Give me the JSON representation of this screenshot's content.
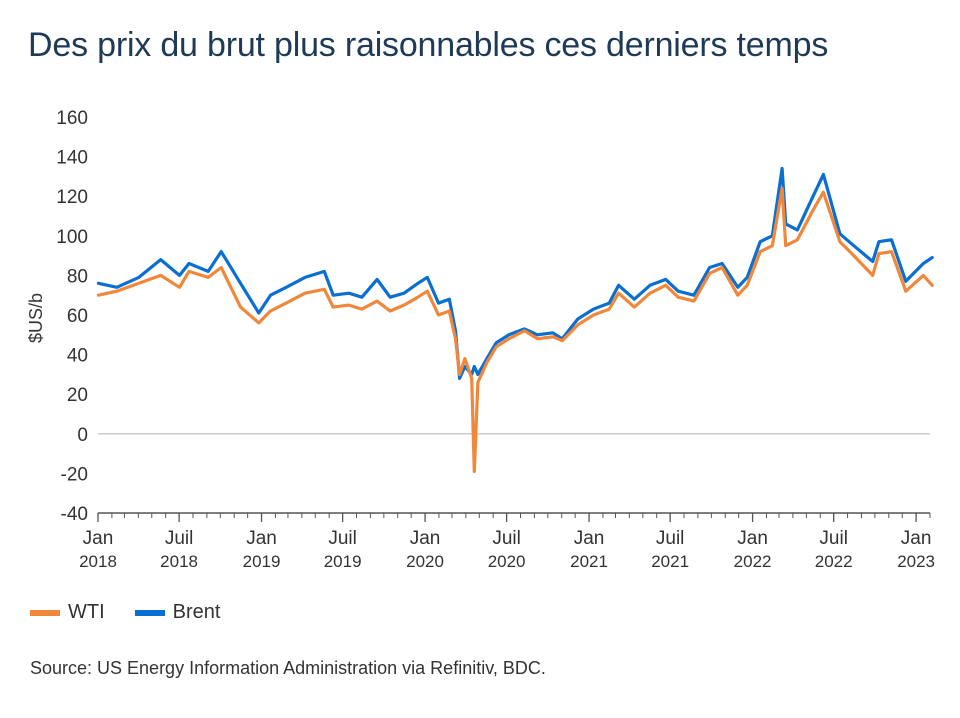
{
  "title": "Des prix du brut plus raisonnables ces derniers temps",
  "source": "Source: US Energy Information Administration via Refinitiv, BDC.",
  "colors": {
    "WTI": "#f0873a",
    "Brent": "#0a6fd1",
    "axis": "#555555",
    "zero_line": "#bbbbbb",
    "title": "#1f3a56"
  },
  "chart_data": {
    "type": "line",
    "ylabel": "$US/b",
    "ylim": [
      -40,
      160
    ],
    "yticks": [
      -40,
      -20,
      0,
      20,
      40,
      60,
      80,
      100,
      120,
      140,
      160
    ],
    "xlim": [
      "2018-01",
      "2023-02"
    ],
    "xticks": [
      {
        "x": "2018-01",
        "label1": "Jan",
        "label2": "2018"
      },
      {
        "x": "2018-07",
        "label1": "Juil",
        "label2": "2018"
      },
      {
        "x": "2019-01",
        "label1": "Jan",
        "label2": "2019"
      },
      {
        "x": "2019-07",
        "label1": "Juil",
        "label2": "2019"
      },
      {
        "x": "2020-01",
        "label1": "Jan",
        "label2": "2020"
      },
      {
        "x": "2020-07",
        "label1": "Juil",
        "label2": "2020"
      },
      {
        "x": "2021-01",
        "label1": "Jan",
        "label2": "2021"
      },
      {
        "x": "2021-07",
        "label1": "Juil",
        "label2": "2021"
      },
      {
        "x": "2022-01",
        "label1": "Jan",
        "label2": "2022"
      },
      {
        "x": "2022-07",
        "label1": "Juil",
        "label2": "2022"
      },
      {
        "x": "2023-01",
        "label1": "Jan",
        "label2": "2023"
      }
    ],
    "legend_position": "bottom-left",
    "series": [
      {
        "name": "WTI",
        "points": [
          [
            "2018-01-02",
            70
          ],
          [
            "2018-02-12",
            72
          ],
          [
            "2018-04-02",
            76
          ],
          [
            "2018-05-21",
            80
          ],
          [
            "2018-07-02",
            74
          ],
          [
            "2018-07-23",
            82
          ],
          [
            "2018-09-04",
            79
          ],
          [
            "2018-10-03",
            84
          ],
          [
            "2018-11-15",
            64
          ],
          [
            "2018-12-26",
            56
          ],
          [
            "2019-01-21",
            62
          ],
          [
            "2019-02-25",
            66
          ],
          [
            "2019-04-08",
            71
          ],
          [
            "2019-05-21",
            73
          ],
          [
            "2019-06-10",
            64
          ],
          [
            "2019-07-15",
            65
          ],
          [
            "2019-08-13",
            63
          ],
          [
            "2019-09-16",
            67
          ],
          [
            "2019-10-15",
            62
          ],
          [
            "2019-11-15",
            65
          ],
          [
            "2019-12-16",
            69
          ],
          [
            "2020-01-06",
            72
          ],
          [
            "2020-01-31",
            60
          ],
          [
            "2020-02-24",
            62
          ],
          [
            "2020-03-09",
            48
          ],
          [
            "2020-03-18",
            30
          ],
          [
            "2020-03-30",
            38
          ],
          [
            "2020-04-14",
            28
          ],
          [
            "2020-04-20",
            -19
          ],
          [
            "2020-04-28",
            26
          ],
          [
            "2020-05-18",
            36
          ],
          [
            "2020-06-08",
            44
          ],
          [
            "2020-07-06",
            48
          ],
          [
            "2020-08-10",
            52
          ],
          [
            "2020-09-08",
            48
          ],
          [
            "2020-10-12",
            49
          ],
          [
            "2020-11-02",
            47
          ],
          [
            "2020-12-07",
            55
          ],
          [
            "2021-01-11",
            60
          ],
          [
            "2021-02-15",
            63
          ],
          [
            "2021-03-08",
            71
          ],
          [
            "2021-04-12",
            64
          ],
          [
            "2021-05-17",
            71
          ],
          [
            "2021-06-21",
            75
          ],
          [
            "2021-07-19",
            69
          ],
          [
            "2021-08-23",
            67
          ],
          [
            "2021-09-27",
            81
          ],
          [
            "2021-10-25",
            84
          ],
          [
            "2021-11-29",
            70
          ],
          [
            "2021-12-20",
            75
          ],
          [
            "2022-01-18",
            92
          ],
          [
            "2022-02-14",
            95
          ],
          [
            "2022-03-08",
            124
          ],
          [
            "2022-03-16",
            95
          ],
          [
            "2022-04-11",
            98
          ],
          [
            "2022-05-16",
            113
          ],
          [
            "2022-06-08",
            122
          ],
          [
            "2022-07-15",
            97
          ],
          [
            "2022-08-15",
            90
          ],
          [
            "2022-09-26",
            80
          ],
          [
            "2022-10-10",
            91
          ],
          [
            "2022-11-07",
            92
          ],
          [
            "2022-12-09",
            72
          ],
          [
            "2023-01-17",
            80
          ],
          [
            "2023-02-06",
            75
          ]
        ]
      },
      {
        "name": "Brent",
        "points": [
          [
            "2018-01-02",
            76
          ],
          [
            "2018-02-12",
            74
          ],
          [
            "2018-04-02",
            79
          ],
          [
            "2018-05-21",
            88
          ],
          [
            "2018-07-02",
            80
          ],
          [
            "2018-07-23",
            86
          ],
          [
            "2018-09-04",
            82
          ],
          [
            "2018-10-03",
            92
          ],
          [
            "2018-11-15",
            76
          ],
          [
            "2018-12-26",
            61
          ],
          [
            "2019-01-21",
            70
          ],
          [
            "2019-02-25",
            74
          ],
          [
            "2019-04-08",
            79
          ],
          [
            "2019-05-21",
            82
          ],
          [
            "2019-06-10",
            70
          ],
          [
            "2019-07-15",
            71
          ],
          [
            "2019-08-13",
            69
          ],
          [
            "2019-09-16",
            78
          ],
          [
            "2019-10-15",
            69
          ],
          [
            "2019-11-15",
            71
          ],
          [
            "2019-12-16",
            76
          ],
          [
            "2020-01-06",
            79
          ],
          [
            "2020-01-31",
            66
          ],
          [
            "2020-02-24",
            68
          ],
          [
            "2020-03-09",
            52
          ],
          [
            "2020-03-18",
            28
          ],
          [
            "2020-03-30",
            34
          ],
          [
            "2020-04-14",
            30
          ],
          [
            "2020-04-20",
            34
          ],
          [
            "2020-04-28",
            30
          ],
          [
            "2020-05-18",
            38
          ],
          [
            "2020-06-08",
            46
          ],
          [
            "2020-07-06",
            50
          ],
          [
            "2020-08-10",
            53
          ],
          [
            "2020-09-08",
            50
          ],
          [
            "2020-10-12",
            51
          ],
          [
            "2020-11-02",
            48
          ],
          [
            "2020-12-07",
            58
          ],
          [
            "2021-01-11",
            63
          ],
          [
            "2021-02-15",
            66
          ],
          [
            "2021-03-08",
            75
          ],
          [
            "2021-04-12",
            68
          ],
          [
            "2021-05-17",
            75
          ],
          [
            "2021-06-21",
            78
          ],
          [
            "2021-07-19",
            72
          ],
          [
            "2021-08-23",
            70
          ],
          [
            "2021-09-27",
            84
          ],
          [
            "2021-10-25",
            86
          ],
          [
            "2021-11-29",
            74
          ],
          [
            "2021-12-20",
            79
          ],
          [
            "2022-01-18",
            97
          ],
          [
            "2022-02-14",
            100
          ],
          [
            "2022-03-08",
            134
          ],
          [
            "2022-03-16",
            106
          ],
          [
            "2022-04-11",
            103
          ],
          [
            "2022-05-16",
            120
          ],
          [
            "2022-06-08",
            131
          ],
          [
            "2022-07-15",
            101
          ],
          [
            "2022-08-15",
            95
          ],
          [
            "2022-09-26",
            87
          ],
          [
            "2022-10-10",
            97
          ],
          [
            "2022-11-07",
            98
          ],
          [
            "2022-12-09",
            77
          ],
          [
            "2023-01-17",
            86
          ],
          [
            "2023-02-06",
            89
          ]
        ]
      }
    ]
  }
}
